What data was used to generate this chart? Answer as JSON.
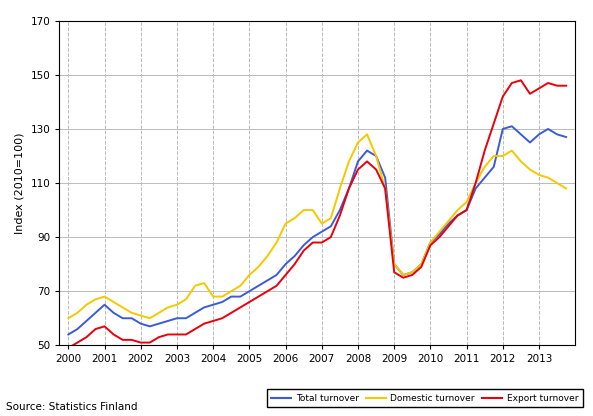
{
  "title": "",
  "ylabel": "Index (2010=100)",
  "source": "Source: Statistics Finland",
  "ylim": [
    50,
    170
  ],
  "yticks": [
    50,
    70,
    90,
    110,
    130,
    150,
    170
  ],
  "years": [
    2000,
    2001,
    2002,
    2003,
    2004,
    2005,
    2006,
    2007,
    2008,
    2009,
    2010,
    2011,
    2012,
    2013
  ],
  "total_turnover": {
    "label": "Total turnover",
    "color": "#3b5bdb",
    "data_x": [
      2000.0,
      2000.25,
      2000.5,
      2000.75,
      2001.0,
      2001.25,
      2001.5,
      2001.75,
      2002.0,
      2002.25,
      2002.5,
      2002.75,
      2003.0,
      2003.25,
      2003.5,
      2003.75,
      2004.0,
      2004.25,
      2004.5,
      2004.75,
      2005.0,
      2005.25,
      2005.5,
      2005.75,
      2006.0,
      2006.25,
      2006.5,
      2006.75,
      2007.0,
      2007.25,
      2007.5,
      2007.75,
      2008.0,
      2008.25,
      2008.5,
      2008.75,
      2009.0,
      2009.25,
      2009.5,
      2009.75,
      2010.0,
      2010.25,
      2010.5,
      2010.75,
      2011.0,
      2011.25,
      2011.5,
      2011.75,
      2012.0,
      2012.25,
      2012.5,
      2012.75,
      2013.0,
      2013.25,
      2013.5,
      2013.75
    ],
    "data_y": [
      54,
      56,
      59,
      62,
      65,
      62,
      60,
      60,
      58,
      57,
      58,
      59,
      60,
      60,
      62,
      64,
      65,
      66,
      68,
      68,
      70,
      72,
      74,
      76,
      80,
      83,
      87,
      90,
      92,
      94,
      100,
      108,
      118,
      122,
      120,
      112,
      80,
      76,
      77,
      80,
      88,
      91,
      95,
      98,
      100,
      108,
      112,
      116,
      130,
      131,
      128,
      125,
      128,
      130,
      128,
      127
    ]
  },
  "domestic_turnover": {
    "label": "Domestic turnover",
    "color": "#f5c800",
    "data_x": [
      2000.0,
      2000.25,
      2000.5,
      2000.75,
      2001.0,
      2001.25,
      2001.5,
      2001.75,
      2002.0,
      2002.25,
      2002.5,
      2002.75,
      2003.0,
      2003.25,
      2003.5,
      2003.75,
      2004.0,
      2004.25,
      2004.5,
      2004.75,
      2005.0,
      2005.25,
      2005.5,
      2005.75,
      2006.0,
      2006.25,
      2006.5,
      2006.75,
      2007.0,
      2007.25,
      2007.5,
      2007.75,
      2008.0,
      2008.25,
      2008.5,
      2008.75,
      2009.0,
      2009.25,
      2009.5,
      2009.75,
      2010.0,
      2010.25,
      2010.5,
      2010.75,
      2011.0,
      2011.25,
      2011.5,
      2011.75,
      2012.0,
      2012.25,
      2012.5,
      2012.75,
      2013.0,
      2013.25,
      2013.5,
      2013.75
    ],
    "data_y": [
      60,
      62,
      65,
      67,
      68,
      66,
      64,
      62,
      61,
      60,
      62,
      64,
      65,
      67,
      72,
      73,
      68,
      68,
      70,
      72,
      76,
      79,
      83,
      88,
      95,
      97,
      100,
      100,
      95,
      97,
      108,
      118,
      125,
      128,
      120,
      108,
      80,
      76,
      77,
      80,
      88,
      92,
      96,
      100,
      103,
      110,
      116,
      120,
      120,
      122,
      118,
      115,
      113,
      112,
      110,
      108
    ]
  },
  "export_turnover": {
    "label": "Export turnover",
    "color": "#e8000d",
    "data_x": [
      2000.0,
      2000.25,
      2000.5,
      2000.75,
      2001.0,
      2001.25,
      2001.5,
      2001.75,
      2002.0,
      2002.25,
      2002.5,
      2002.75,
      2003.0,
      2003.25,
      2003.5,
      2003.75,
      2004.0,
      2004.25,
      2004.5,
      2004.75,
      2005.0,
      2005.25,
      2005.5,
      2005.75,
      2006.0,
      2006.25,
      2006.5,
      2006.75,
      2007.0,
      2007.25,
      2007.5,
      2007.75,
      2008.0,
      2008.25,
      2008.5,
      2008.75,
      2009.0,
      2009.25,
      2009.5,
      2009.75,
      2010.0,
      2010.25,
      2010.5,
      2010.75,
      2011.0,
      2011.25,
      2011.5,
      2011.75,
      2012.0,
      2012.25,
      2012.5,
      2012.75,
      2013.0,
      2013.25,
      2013.5,
      2013.75
    ],
    "data_y": [
      49,
      51,
      53,
      56,
      57,
      54,
      52,
      52,
      51,
      51,
      53,
      54,
      54,
      54,
      56,
      58,
      59,
      60,
      62,
      64,
      66,
      68,
      70,
      72,
      76,
      80,
      85,
      88,
      88,
      90,
      98,
      108,
      115,
      118,
      115,
      108,
      77,
      75,
      76,
      79,
      87,
      90,
      94,
      98,
      100,
      110,
      122,
      132,
      142,
      147,
      148,
      143,
      145,
      147,
      146,
      146
    ]
  },
  "background_color": "#ffffff",
  "grid_color": "#bbbbbb",
  "line_width": 1.4
}
